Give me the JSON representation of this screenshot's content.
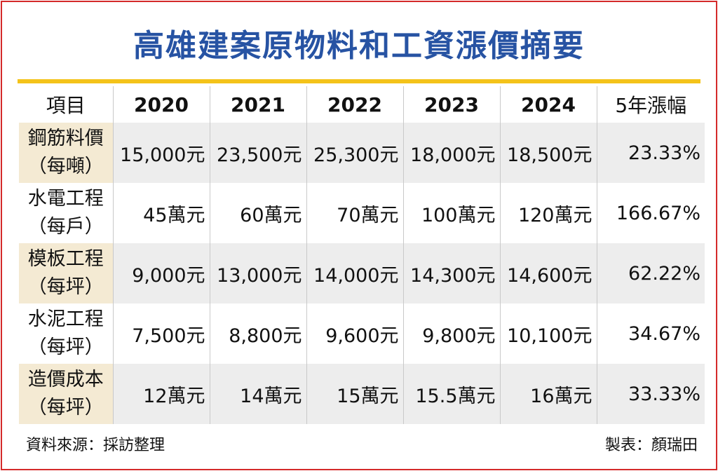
{
  "title": "高雄建案原物料和工資漲價摘要",
  "colors": {
    "title": "#2753a3",
    "title_rule": "#f4c31a",
    "border": "#d42a2a",
    "row_shade": "#ededed",
    "item_shade": "#f4ead3"
  },
  "chart_data": {
    "type": "table",
    "title": "高雄建案原物料和工資漲價摘要",
    "columns": [
      "項目",
      "2020",
      "2021",
      "2022",
      "2023",
      "2024",
      "5年漲幅"
    ],
    "rows": [
      {
        "item": "鋼筋料價",
        "unit": "（每噸）",
        "values": [
          "15,000元",
          "23,500元",
          "25,300元",
          "18,000元",
          "18,500元"
        ],
        "growth": "23.33%",
        "numeric": [
          15000,
          23500,
          25300,
          18000,
          18500
        ]
      },
      {
        "item": "水電工程",
        "unit": "（每戶）",
        "values": [
          "45萬元",
          "60萬元",
          "70萬元",
          "100萬元",
          "120萬元"
        ],
        "growth": "166.67%",
        "numeric": [
          450000,
          600000,
          700000,
          1000000,
          1200000
        ]
      },
      {
        "item": "模板工程",
        "unit": "（每坪）",
        "values": [
          "9,000元",
          "13,000元",
          "14,000元",
          "14,300元",
          "14,600元"
        ],
        "growth": "62.22%",
        "numeric": [
          9000,
          13000,
          14000,
          14300,
          14600
        ]
      },
      {
        "item": "水泥工程",
        "unit": "（每坪）",
        "values": [
          "7,500元",
          "8,800元",
          "9,600元",
          "9,800元",
          "10,100元"
        ],
        "growth": "34.67%",
        "numeric": [
          7500,
          8800,
          9600,
          9800,
          10100
        ]
      },
      {
        "item": "造價成本",
        "unit": "（每坪）",
        "values": [
          "12萬元",
          "14萬元",
          "15萬元",
          "15.5萬元",
          "16萬元"
        ],
        "growth": "33.33%",
        "numeric": [
          120000,
          140000,
          150000,
          155000,
          160000
        ]
      }
    ]
  },
  "footer": {
    "source": "資料來源：採訪整理",
    "credit": "製表：顏瑞田"
  }
}
